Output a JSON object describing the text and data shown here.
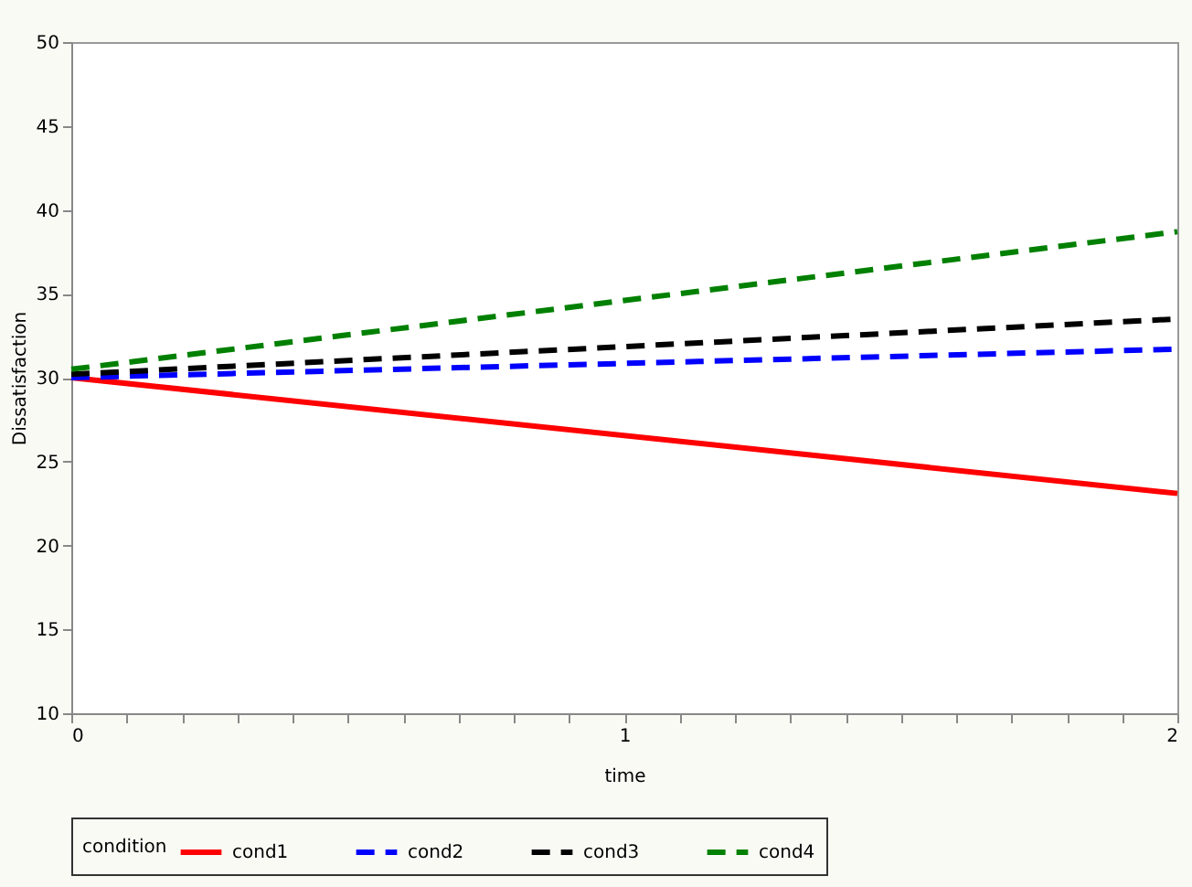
{
  "chart_data": {
    "type": "line",
    "xlabel": "time",
    "ylabel": "Dissatisfaction",
    "legend_title": "condition",
    "legend": "bottom",
    "grid": false,
    "xlim": [
      0,
      2
    ],
    "ylim": [
      10,
      50
    ],
    "xticks": [
      0,
      {
        "value": 0.1,
        "label": null
      },
      {
        "value": 0.2,
        "label": null
      },
      {
        "value": 0.3,
        "label": null
      },
      {
        "value": 0.4,
        "label": null
      },
      {
        "value": 0.5,
        "label": null
      },
      {
        "value": 0.6,
        "label": null
      },
      {
        "value": 0.7,
        "label": null
      },
      {
        "value": 0.8,
        "label": null
      },
      {
        "value": 0.9,
        "label": null
      },
      1,
      {
        "value": 1.1,
        "label": null
      },
      {
        "value": 1.2,
        "label": null
      },
      {
        "value": 1.3,
        "label": null
      },
      {
        "value": 1.4,
        "label": null
      },
      {
        "value": 1.5,
        "label": null
      },
      {
        "value": 1.6,
        "label": null
      },
      {
        "value": 1.7,
        "label": null
      },
      {
        "value": 1.8,
        "label": null
      },
      {
        "value": 1.9,
        "label": null
      },
      2
    ],
    "yticks": [
      10,
      15,
      20,
      25,
      30,
      35,
      40,
      45,
      50
    ],
    "x": [
      0,
      2
    ],
    "series": [
      {
        "name": "cond1",
        "color": "#ff0000",
        "line_style": "solid",
        "values": [
          30.0,
          23.1
        ]
      },
      {
        "name": "cond2",
        "color": "#0000ff",
        "line_style": "dashed",
        "values": [
          30.0,
          31.7
        ]
      },
      {
        "name": "cond3",
        "color": "#000000",
        "line_style": "dashed",
        "values": [
          30.2,
          33.5
        ]
      },
      {
        "name": "cond4",
        "color": "#008000",
        "line_style": "dashed",
        "values": [
          30.5,
          38.7
        ]
      }
    ]
  }
}
